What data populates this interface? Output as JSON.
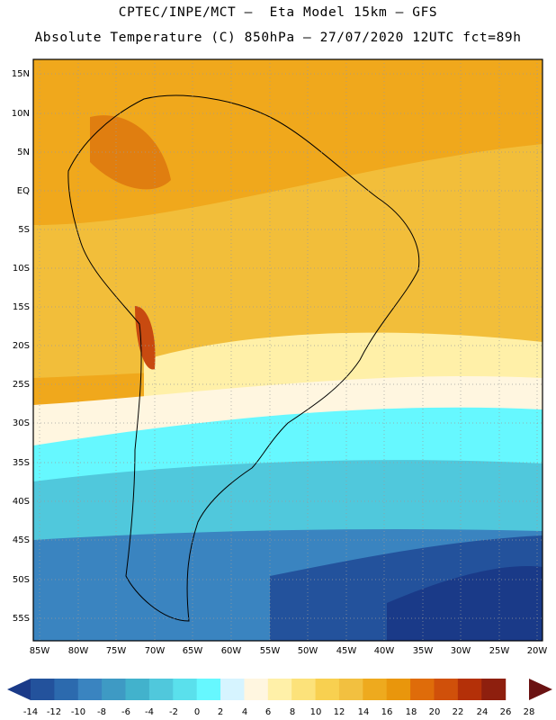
{
  "header": {
    "line1": "CPTEC/INPE/MCT –  Eta Model 15km – GFS",
    "line2": "Absolute Temperature (C) 850hPa – 27/07/2020 12UTC fct=89h"
  },
  "map": {
    "lat_labels": [
      "15N",
      "10N",
      "5N",
      "EQ",
      "5S",
      "10S",
      "15S",
      "20S",
      "25S",
      "30S",
      "35S",
      "40S",
      "45S",
      "50S",
      "55S"
    ],
    "lon_labels": [
      "85W",
      "80W",
      "75W",
      "70W",
      "65W",
      "60W",
      "55W",
      "50W",
      "45W",
      "40W",
      "35W",
      "30W",
      "25W",
      "20W"
    ]
  },
  "colorbar": {
    "labels": [
      "-14",
      "-12",
      "-10",
      "-8",
      "-6",
      "-4",
      "-2",
      "0",
      "2",
      "4",
      "6",
      "8",
      "10",
      "12",
      "14",
      "16",
      "18",
      "20",
      "22",
      "24",
      "26",
      "28"
    ],
    "colors": [
      "#1a3a88",
      "#23529c",
      "#2c6aae",
      "#3a84c0",
      "#3e9ac4",
      "#42b2cc",
      "#50c8dc",
      "#5ae0ec",
      "#66f8ff",
      "#d6f4ff",
      "#fff6e0",
      "#fff0a8",
      "#fce27a",
      "#f8d050",
      "#f2c040",
      "#eeaa1e",
      "#e9960c",
      "#df6c0a",
      "#d0500a",
      "#b43008",
      "#8e1f0e",
      "#6a1212"
    ]
  },
  "colors": {
    "ocean_orange": "#f0a81c",
    "warm_yellow": "#f2be3a",
    "pale_yellow": "#fff0a8",
    "cream": "#fff6e0",
    "cyan": "#66f8ff",
    "light_blue": "#50c8dc",
    "mid_blue": "#3a84c0",
    "deep_blue": "#23529c",
    "darkest_blue": "#1a3a88",
    "dark_orange": "#e07e10",
    "hot": "#c84a10"
  }
}
